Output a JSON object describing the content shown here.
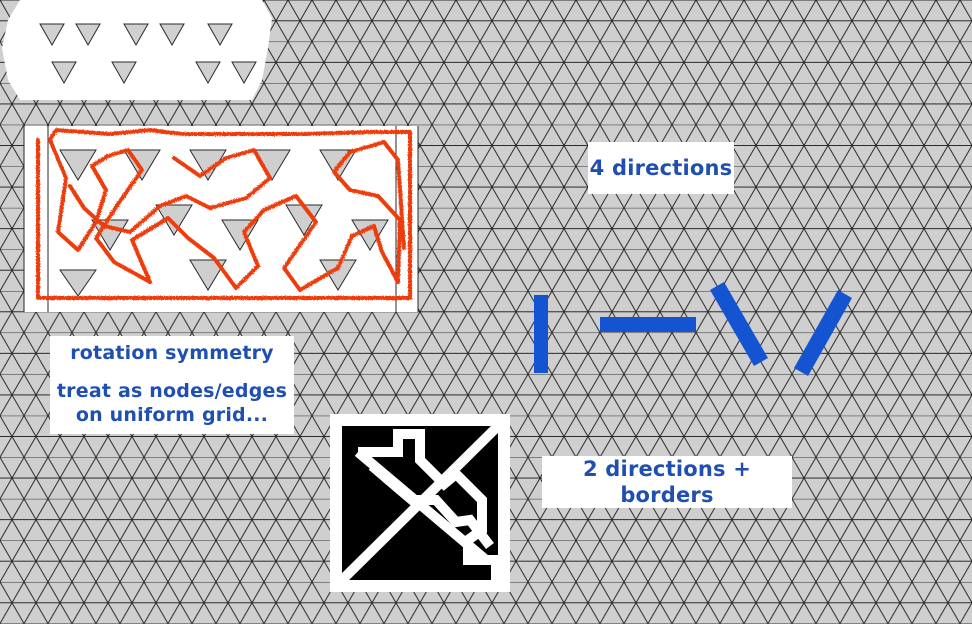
{
  "labels": {
    "four_directions": "4 directions",
    "rotation_symmetry": "rotation symmetry",
    "treat_as_line1": "treat as nodes/edges",
    "treat_as_line2": "on uniform grid...",
    "two_directions": "2 directions + borders"
  },
  "colors": {
    "grid_fill": "#cfcfcf",
    "grid_line": "#2a2a2a",
    "panel_white": "#ffffff",
    "trace_orange": "#ee3d10",
    "label_blue": "#1f4fb0",
    "stroke_blue": "#1554d1",
    "tile_black": "#000000"
  }
}
